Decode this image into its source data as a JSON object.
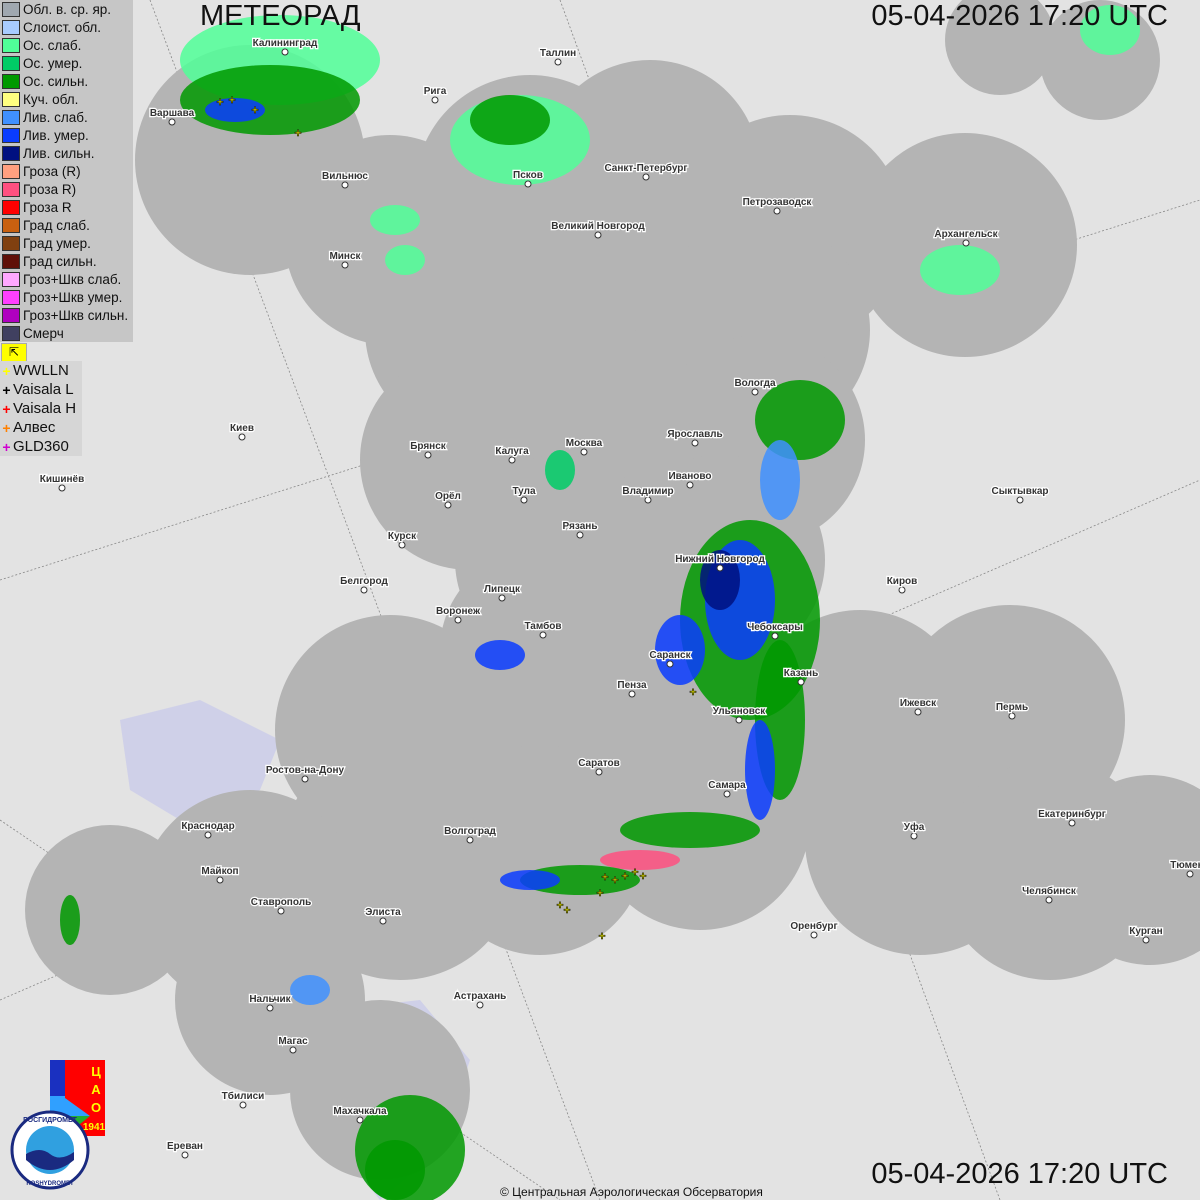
{
  "header": {
    "title": "МЕТЕОРАД",
    "timestamp": "05-04-2026  17:20 UTC"
  },
  "footer": {
    "timestamp": "05-04-2026  17:20 UTC",
    "copyright": "© Центральная Аэрологическая Обсерватория"
  },
  "legend": {
    "items": [
      {
        "label": "Обл. в. ср. яр.",
        "color": "#a0a8b0"
      },
      {
        "label": "Слоист. обл.",
        "color": "#a8ccff"
      },
      {
        "label": "Ос. слаб.",
        "color": "#50ff98"
      },
      {
        "label": "Ос. умер.",
        "color": "#00cc66"
      },
      {
        "label": "Ос. сильн.",
        "color": "#009900"
      },
      {
        "label": "Куч. обл.",
        "color": "#ffff80"
      },
      {
        "label": "Лив. слаб.",
        "color": "#4090ff"
      },
      {
        "label": "Лив. умер.",
        "color": "#0a3cff"
      },
      {
        "label": "Лив. сильн.",
        "color": "#001080"
      },
      {
        "label": "Гроза (R)",
        "color": "#ffa080"
      },
      {
        "label": "Гроза R)",
        "color": "#ff5080"
      },
      {
        "label": "Гроза R",
        "color": "#ff0000"
      },
      {
        "label": "Град слаб.",
        "color": "#c86010"
      },
      {
        "label": "Град умер.",
        "color": "#804010"
      },
      {
        "label": "Град сильн.",
        "color": "#601008"
      },
      {
        "label": "Гроз+Шкв слаб.",
        "color": "#ffa8ff"
      },
      {
        "label": "Гроз+Шкв умер.",
        "color": "#ff40ff"
      },
      {
        "label": "Гроз+Шкв сильн.",
        "color": "#b000c0"
      },
      {
        "label": "Смерч",
        "color": "#404060"
      }
    ],
    "toggle_icon": "arrow-icon",
    "lightning": [
      {
        "label": "WWLLN",
        "color": "#ffff00"
      },
      {
        "label": "Vaisala L",
        "color": "#000000"
      },
      {
        "label": "Vaisala H",
        "color": "#ff0000"
      },
      {
        "label": "Алвес",
        "color": "#ff8000"
      },
      {
        "label": "GLD360",
        "color": "#d000d0"
      }
    ]
  },
  "logos": {
    "cao": "ЦАО 1941",
    "roshydromet": "РОСГИДРОМЕТ ROSHYDROMET"
  },
  "cities": [
    "Калининград",
    "Таллин",
    "Рига",
    "Варшава",
    "Санкт-Петербург",
    "Псков",
    "Вильнюс",
    "Петрозаводск",
    "Архангельск",
    "Великий Новгород",
    "Минск",
    "Вологда",
    "Москва",
    "Ярославль",
    "Брянск",
    "Калуга",
    "Киев",
    "Иваново",
    "Кишинёв",
    "Тула",
    "Владимир",
    "Орёл",
    "Сыктывкар",
    "Рязань",
    "Курск",
    "Нижний Новгород",
    "Белгород",
    "Киров",
    "Липецк",
    "Воронеж",
    "Тамбов",
    "Чебоксары",
    "Саранск",
    "Казань",
    "Пенза",
    "Ижевск",
    "Пермь",
    "Ульяновск",
    "Ростов-на-Дону",
    "Саратов",
    "Самара",
    "Краснодар",
    "Уфа",
    "Екатеринбург",
    "Волгоград",
    "Майкоп",
    "Тюмень",
    "Челябинск",
    "Ставрополь",
    "Элиста",
    "Оренбург",
    "Курган",
    "Нальчик",
    "Астрахань",
    "Магас",
    "Тбилиси",
    "Махачкала",
    "Ереван"
  ],
  "colors": {
    "background": "#e3e3e3",
    "radar_coverage": "#b4b4b4"
  }
}
